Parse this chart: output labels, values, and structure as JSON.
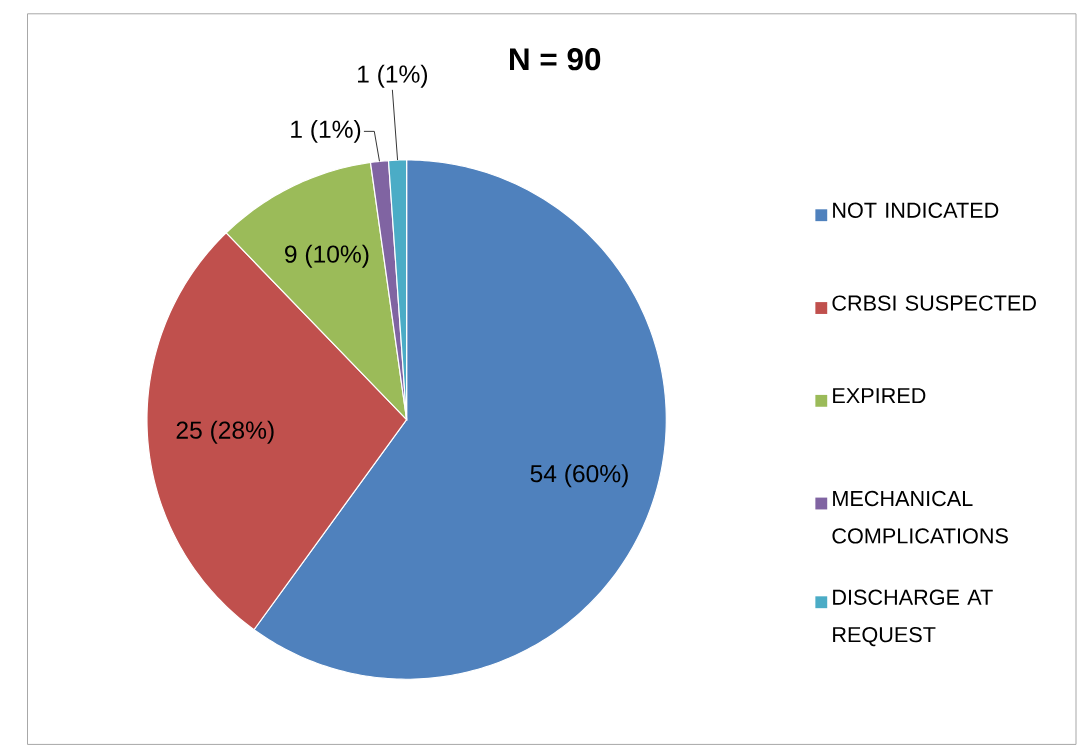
{
  "chart_data": {
    "type": "pie",
    "title": "N = 90",
    "categories": [
      "NOT INDICATED",
      "CRBSI SUSPECTED",
      "EXPIRED",
      "MECHANICAL COMPLICATIONS",
      "DISCHARGE AT REQUEST"
    ],
    "values": [
      54,
      25,
      9,
      1,
      1
    ],
    "colors": [
      "#4f81bd",
      "#c0504d",
      "#9bbb59",
      "#8064a2",
      "#4bacc6"
    ],
    "value_labels": [
      "54 (60%)",
      "25 (28%)",
      "9 (10%)",
      "1 (1%)",
      "1 (1%)"
    ],
    "legend": "right"
  }
}
